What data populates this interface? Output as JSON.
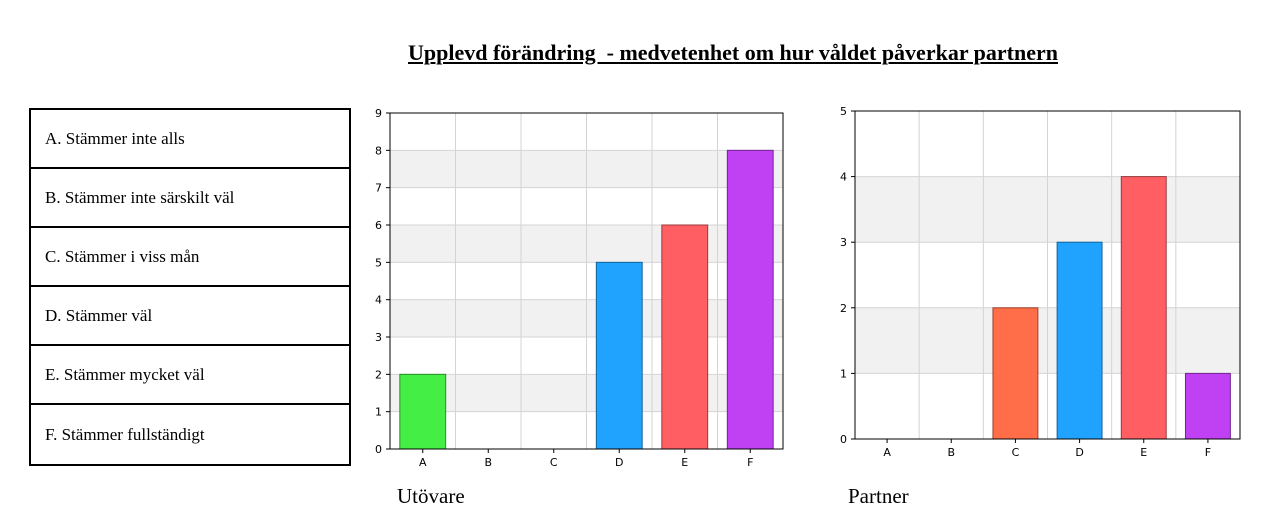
{
  "title": "Upplevd förändring  - medvetenhet om hur våldet påverkar partnern",
  "legend": [
    "A. Stämmer inte alls",
    "B. Stämmer inte särskilt väl",
    "C. Stämmer i viss mån",
    "D. Stämmer väl",
    "E. Stämmer mycket väl",
    "F. Stämmer fullständigt"
  ],
  "chart_data": [
    {
      "type": "bar",
      "title": "Utövare",
      "categories": [
        "A",
        "B",
        "C",
        "D",
        "E",
        "F"
      ],
      "values": [
        2,
        0,
        0,
        5,
        6,
        8
      ],
      "ylim": [
        0,
        9
      ],
      "yticks": [
        0,
        1,
        2,
        3,
        4,
        5,
        6,
        7,
        8,
        9
      ],
      "colors": [
        "#44ee44",
        "#1fa3ff",
        "#1fa3ff",
        "#1fa3ff",
        "#ff5f63",
        "#c040f4"
      ],
      "grid": true
    },
    {
      "type": "bar",
      "title": "Partner",
      "categories": [
        "A",
        "B",
        "C",
        "D",
        "E",
        "F"
      ],
      "values": [
        0,
        0,
        2,
        3,
        4,
        1
      ],
      "ylim": [
        0,
        5
      ],
      "yticks": [
        0,
        1,
        2,
        3,
        4,
        5
      ],
      "colors": [
        "#44ee44",
        "#1fa3ff",
        "#ff6e48",
        "#1fa3ff",
        "#ff5f63",
        "#c040f4"
      ],
      "grid": true
    }
  ]
}
